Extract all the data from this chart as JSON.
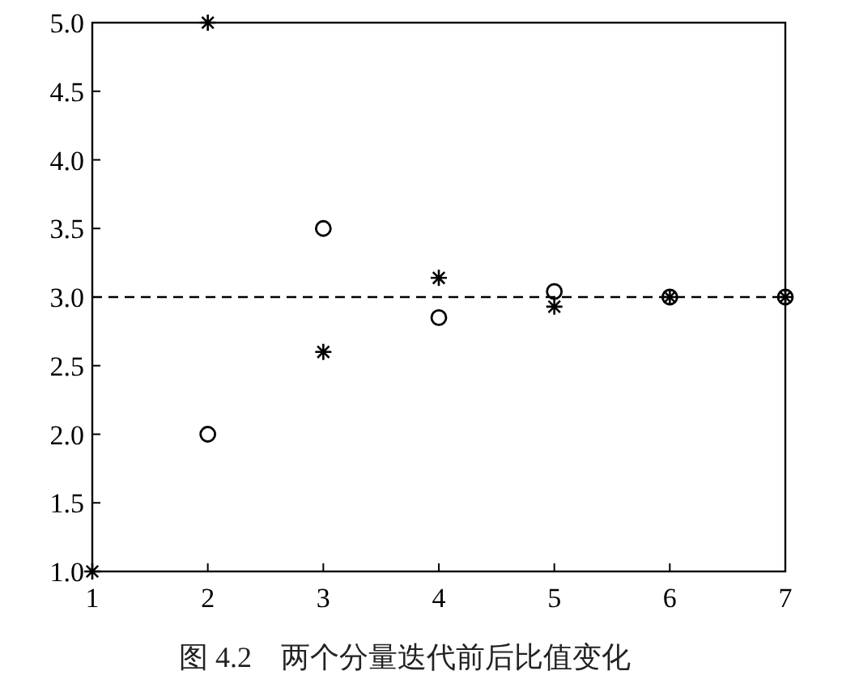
{
  "chart_data": {
    "type": "scatter",
    "x": [
      1,
      2,
      3,
      4,
      5,
      6,
      7
    ],
    "series": [
      {
        "color": "#000000",
        "marker": "cross",
        "values": [
          1.0,
          5.0,
          2.6,
          3.14,
          2.93,
          3.0,
          3.0
        ]
      },
      {
        "color": "#000000",
        "marker": "circle",
        "values": [
          null,
          2.0,
          3.5,
          2.85,
          3.04,
          3.0,
          3.0
        ]
      }
    ],
    "xlim": [
      1,
      7
    ],
    "ylim": [
      1,
      5
    ],
    "xticks": [
      1,
      2,
      3,
      4,
      5,
      6,
      7
    ],
    "yticks": [
      {
        "value": 1,
        "label": "1.0"
      },
      {
        "value": 1.5,
        "label": "1.5"
      },
      {
        "value": 2,
        "label": "2.0"
      },
      {
        "value": 2.5,
        "label": "2.5"
      },
      {
        "value": 3,
        "label": "3.0"
      },
      {
        "value": 3.5,
        "label": "3.5"
      },
      {
        "value": 4,
        "label": "4.0"
      },
      {
        "value": 4.5,
        "label": "4.5"
      },
      {
        "value": 5,
        "label": "5.0"
      }
    ],
    "ref_lines": [
      {
        "axis": "y",
        "value": 3.0,
        "line_style": "dashed",
        "color": "#000000"
      }
    ],
    "grid": false,
    "annotations": [
      "图 4.2    两个分量迭代前后比值变化"
    ]
  }
}
